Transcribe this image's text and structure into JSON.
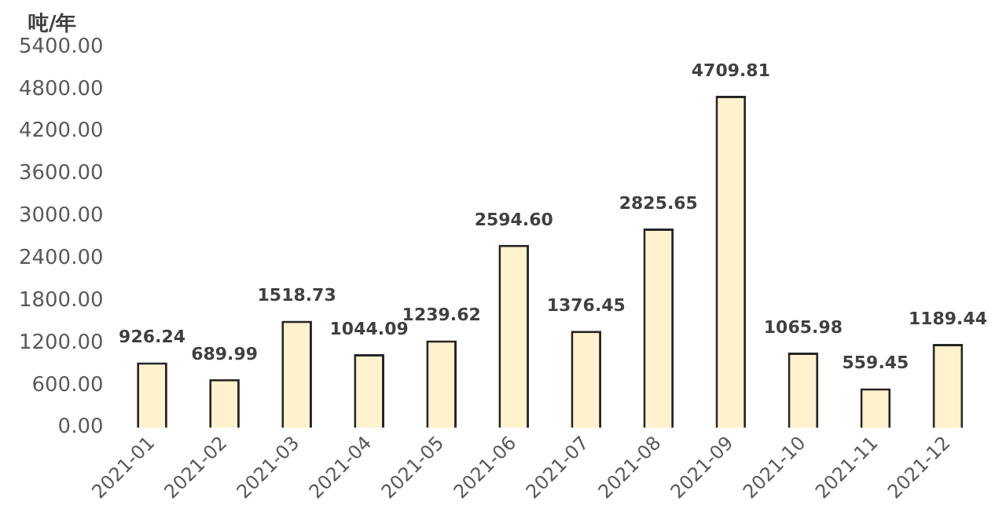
{
  "chart_data": {
    "type": "bar",
    "ylabel": "吨/年",
    "categories": [
      "2021-01",
      "2021-02",
      "2021-03",
      "2021-04",
      "2021-05",
      "2021-06",
      "2021-07",
      "2021-08",
      "2021-09",
      "2021-10",
      "2021-11",
      "2021-12"
    ],
    "values": [
      926.24,
      689.99,
      1518.73,
      1044.09,
      1239.62,
      2594.6,
      1376.45,
      2825.65,
      4709.81,
      1065.98,
      559.45,
      1189.44
    ],
    "value_labels": [
      "926.24",
      "689.99",
      "1518.73",
      "1044.09",
      "1239.62",
      "2594.60",
      "1376.45",
      "2825.65",
      "4709.81",
      "1065.98",
      "559.45",
      "1189.44"
    ],
    "color": "#fff2cc",
    "ylim": [
      0,
      5400
    ],
    "yticks": [
      {
        "value": 0,
        "label": "0.00"
      },
      {
        "value": 600,
        "label": "600.00"
      },
      {
        "value": 1200,
        "label": "1200.00"
      },
      {
        "value": 1800,
        "label": "1800.00"
      },
      {
        "value": 2400,
        "label": "2400.00"
      },
      {
        "value": 3000,
        "label": "3000.00"
      },
      {
        "value": 3600,
        "label": "3600.00"
      },
      {
        "value": 4200,
        "label": "4200.00"
      },
      {
        "value": 4800,
        "label": "4800.00"
      },
      {
        "value": 5400,
        "label": "5400.00"
      }
    ],
    "grid": false,
    "legend": false
  }
}
